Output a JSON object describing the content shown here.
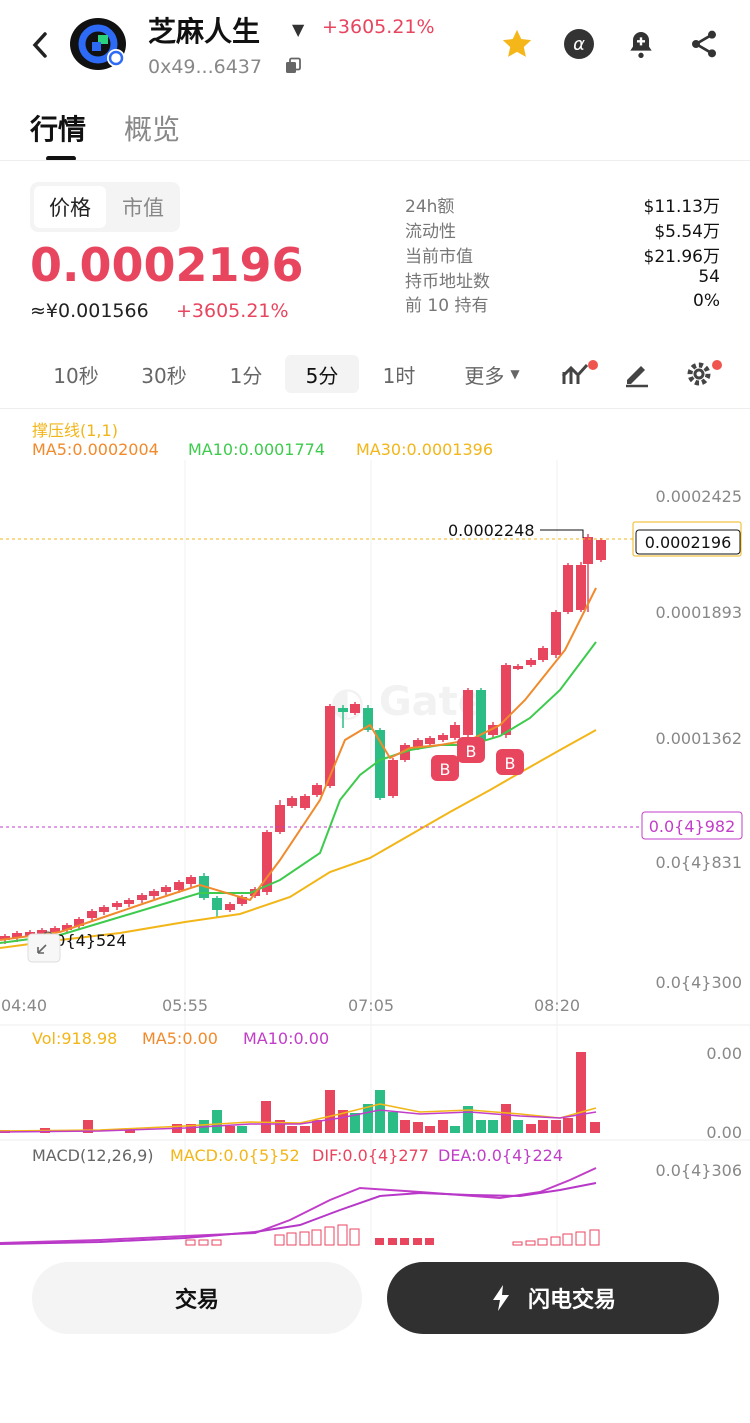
{
  "header": {
    "back_icon": "chevron-left-icon",
    "token_name": "芝麻人生",
    "change_pct": "+3605.21%",
    "address": "0x49...6437",
    "icons": [
      "star-icon",
      "alpha-icon",
      "bell-plus-icon",
      "share-icon"
    ]
  },
  "tabs": {
    "active": "行情",
    "inactive": "概览"
  },
  "price_block": {
    "toggle_price": "价格",
    "toggle_cap": "市值",
    "price": "0.0002196",
    "cny": "≈¥0.001566",
    "change": "+3605.21%"
  },
  "stats": [
    {
      "label": "24h额",
      "value": "$11.13万"
    },
    {
      "label": "流动性",
      "value": "$5.54万"
    },
    {
      "label": "当前市值",
      "value": "$21.96万"
    },
    {
      "label": "持币地址数",
      "value": "54"
    },
    {
      "label": "前 10 持有",
      "value": "0%"
    }
  ],
  "timeframes": [
    "10秒",
    "30秒",
    "1分",
    "5分",
    "1时"
  ],
  "timeframe_active": "5分",
  "more_label": "更多",
  "indicators": {
    "support_line": "撑压线(1,1)",
    "ma5": "MA5:0.0002004",
    "ma10": "MA10:0.0001774",
    "ma30": "MA30:0.0001396",
    "vol": "Vol:918.98",
    "vol_ma5": "MA5:0.00",
    "vol_ma10": "MA10:0.00",
    "macd_title": "MACD(12,26,9)",
    "macd_val": "MACD:0.0{5}52",
    "dif": "DIF:0.0{4}277",
    "dea": "DEA:0.0{4}224"
  },
  "chart_labels": {
    "price_axis": [
      "0.0002425",
      "0.0001893",
      "0.0001362",
      "0.0{4}831",
      "0.0{4}300"
    ],
    "time_axis": [
      "04:40",
      "05:55",
      "07:05",
      "08:20"
    ],
    "high_marker": "0.0002248",
    "last_price": "0.0002196",
    "dashed_price": "0.0{4}982",
    "low_marker": "0.0{4}524",
    "vol_axis": [
      "0.00",
      "0.00"
    ],
    "macd_axis": "0.0{4}306",
    "buy_marker": "B"
  },
  "colors": {
    "up": "#e8455f",
    "down": "#2cbc85",
    "ma5": "#f08a2c",
    "ma10": "#3ecb4d",
    "ma30": "#f2b619",
    "purple": "#c13ec8"
  },
  "buttons": {
    "trade": "交易",
    "flash_trade": "闪电交易"
  }
}
